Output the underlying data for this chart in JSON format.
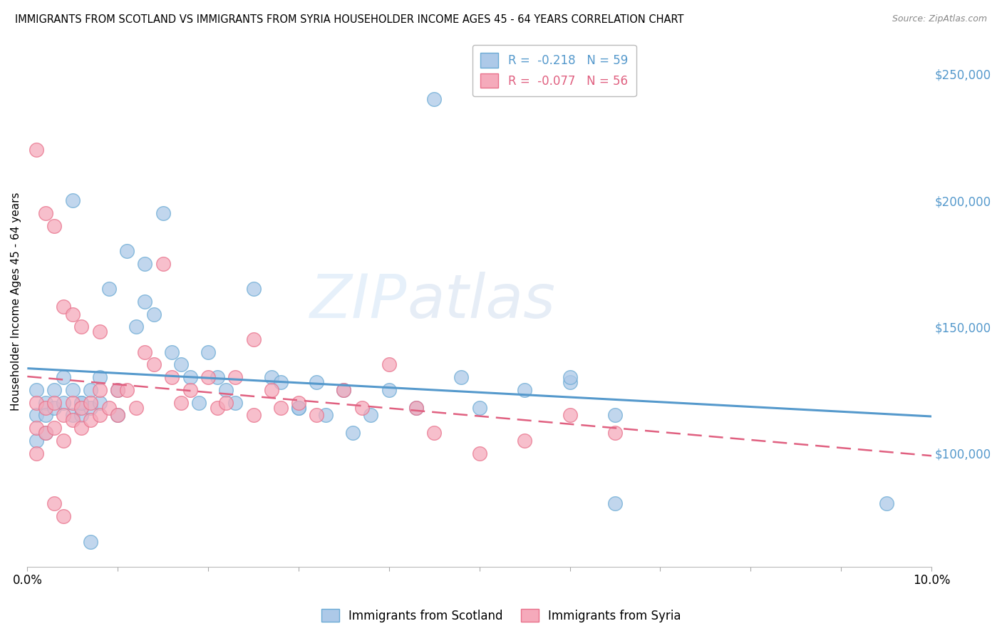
{
  "title": "IMMIGRANTS FROM SCOTLAND VS IMMIGRANTS FROM SYRIA HOUSEHOLDER INCOME AGES 45 - 64 YEARS CORRELATION CHART",
  "source": "Source: ZipAtlas.com",
  "ylabel": "Householder Income Ages 45 - 64 years",
  "watermark_zip": "ZIP",
  "watermark_atlas": "atlas",
  "legend_scotland": "R =  -0.218   N = 59",
  "legend_syria": "R =  -0.077   N = 56",
  "legend_label_scotland": "Immigrants from Scotland",
  "legend_label_syria": "Immigrants from Syria",
  "scotland_color": "#adc9e8",
  "syria_color": "#f5aabb",
  "scotland_edge_color": "#6aaad4",
  "syria_edge_color": "#e8708a",
  "scotland_line_color": "#5599cc",
  "syria_line_color": "#e06080",
  "background_color": "#ffffff",
  "grid_color": "#cccccc",
  "right_axis_color": "#5599cc",
  "xlim": [
    0.0,
    0.1
  ],
  "ylim": [
    55000,
    265000
  ],
  "right_yticks": [
    100000,
    150000,
    200000,
    250000
  ],
  "right_yticklabels": [
    "$100,000",
    "$150,000",
    "$200,000",
    "$250,000"
  ],
  "scotland_x": [
    0.001,
    0.001,
    0.001,
    0.002,
    0.002,
    0.002,
    0.003,
    0.003,
    0.004,
    0.004,
    0.005,
    0.005,
    0.006,
    0.006,
    0.007,
    0.007,
    0.008,
    0.008,
    0.009,
    0.01,
    0.01,
    0.011,
    0.012,
    0.013,
    0.013,
    0.014,
    0.015,
    0.016,
    0.017,
    0.018,
    0.019,
    0.02,
    0.021,
    0.022,
    0.023,
    0.025,
    0.027,
    0.028,
    0.03,
    0.032,
    0.035,
    0.038,
    0.04,
    0.043,
    0.045,
    0.048,
    0.05,
    0.055,
    0.06,
    0.065,
    0.03,
    0.033,
    0.036,
    0.06,
    0.065,
    0.095,
    0.005,
    0.006,
    0.007
  ],
  "scotland_y": [
    125000,
    115000,
    105000,
    120000,
    115000,
    108000,
    125000,
    118000,
    130000,
    120000,
    125000,
    115000,
    120000,
    115000,
    125000,
    118000,
    130000,
    120000,
    165000,
    125000,
    115000,
    180000,
    150000,
    175000,
    160000,
    155000,
    195000,
    140000,
    135000,
    130000,
    120000,
    140000,
    130000,
    125000,
    120000,
    165000,
    130000,
    128000,
    118000,
    128000,
    125000,
    115000,
    125000,
    118000,
    240000,
    130000,
    118000,
    125000,
    128000,
    115000,
    118000,
    115000,
    108000,
    130000,
    80000,
    80000,
    200000,
    120000,
    65000
  ],
  "syria_x": [
    0.001,
    0.001,
    0.001,
    0.002,
    0.002,
    0.003,
    0.003,
    0.004,
    0.004,
    0.005,
    0.005,
    0.006,
    0.006,
    0.007,
    0.007,
    0.008,
    0.008,
    0.009,
    0.01,
    0.01,
    0.011,
    0.012,
    0.013,
    0.014,
    0.015,
    0.016,
    0.017,
    0.018,
    0.02,
    0.021,
    0.022,
    0.023,
    0.025,
    0.027,
    0.028,
    0.03,
    0.032,
    0.035,
    0.037,
    0.04,
    0.043,
    0.045,
    0.05,
    0.055,
    0.06,
    0.065,
    0.001,
    0.002,
    0.003,
    0.004,
    0.005,
    0.006,
    0.008,
    0.025,
    0.003,
    0.004
  ],
  "syria_y": [
    120000,
    110000,
    100000,
    118000,
    108000,
    120000,
    110000,
    115000,
    105000,
    120000,
    113000,
    118000,
    110000,
    120000,
    113000,
    125000,
    115000,
    118000,
    125000,
    115000,
    125000,
    118000,
    140000,
    135000,
    175000,
    130000,
    120000,
    125000,
    130000,
    118000,
    120000,
    130000,
    145000,
    125000,
    118000,
    120000,
    115000,
    125000,
    118000,
    135000,
    118000,
    108000,
    100000,
    105000,
    115000,
    108000,
    220000,
    195000,
    190000,
    158000,
    155000,
    150000,
    148000,
    115000,
    80000,
    75000
  ]
}
